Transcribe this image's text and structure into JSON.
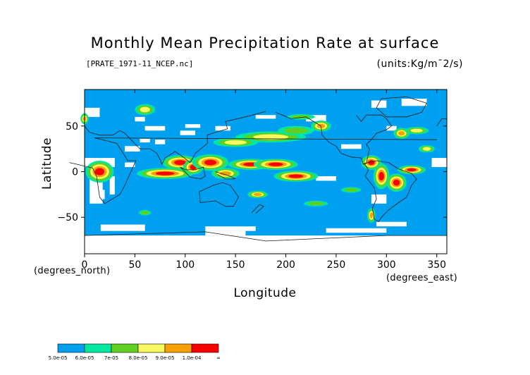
{
  "chart_data": {
    "type": "heatmap",
    "title": "Monthly Mean Precipitation Rate at surface",
    "subtitle": "[PRATE_1971-11_NCEP.nc]",
    "units": "(units:Kg/m¯2/s)",
    "xlabel": "Longitude",
    "ylabel": "Latitude",
    "x_unit_label": "(degrees_east)",
    "y_unit_label": "(degrees_north)",
    "xlim": [
      0,
      360
    ],
    "ylim": [
      -90,
      90
    ],
    "x_ticks": [
      "0",
      "50",
      "100",
      "150",
      "200",
      "250",
      "300",
      "350"
    ],
    "x_tick_values": [
      0,
      50,
      100,
      150,
      200,
      250,
      300,
      350
    ],
    "y_ticks": [
      "50",
      "0",
      "−50"
    ],
    "y_tick_values": [
      50,
      0,
      -50
    ],
    "grid": false,
    "legend": {
      "placement": "bottom-left",
      "labels": [
        "5.0e-05",
        "6.0e-05",
        "7e-05",
        "8.0e-05",
        "9.0e-05",
        "1.0e-04",
        "∞"
      ],
      "bins": [
        {
          "from": 5e-05,
          "to": 6e-05,
          "color": "#00a0f0"
        },
        {
          "from": 6e-05,
          "to": 7e-05,
          "color": "#00e8a0"
        },
        {
          "from": 7e-05,
          "to": 8e-05,
          "color": "#60d020"
        },
        {
          "from": 8e-05,
          "to": 9e-05,
          "color": "#f8f860"
        },
        {
          "from": 9e-05,
          "to": 0.0001,
          "color": "#f8a000"
        },
        {
          "from": 0.0001,
          "to": null,
          "color": "#f80000"
        }
      ]
    },
    "colors": {
      "background_field": "#00a0f0",
      "no_data": "#ffffff",
      "coast": "#1a1a1a"
    }
  }
}
